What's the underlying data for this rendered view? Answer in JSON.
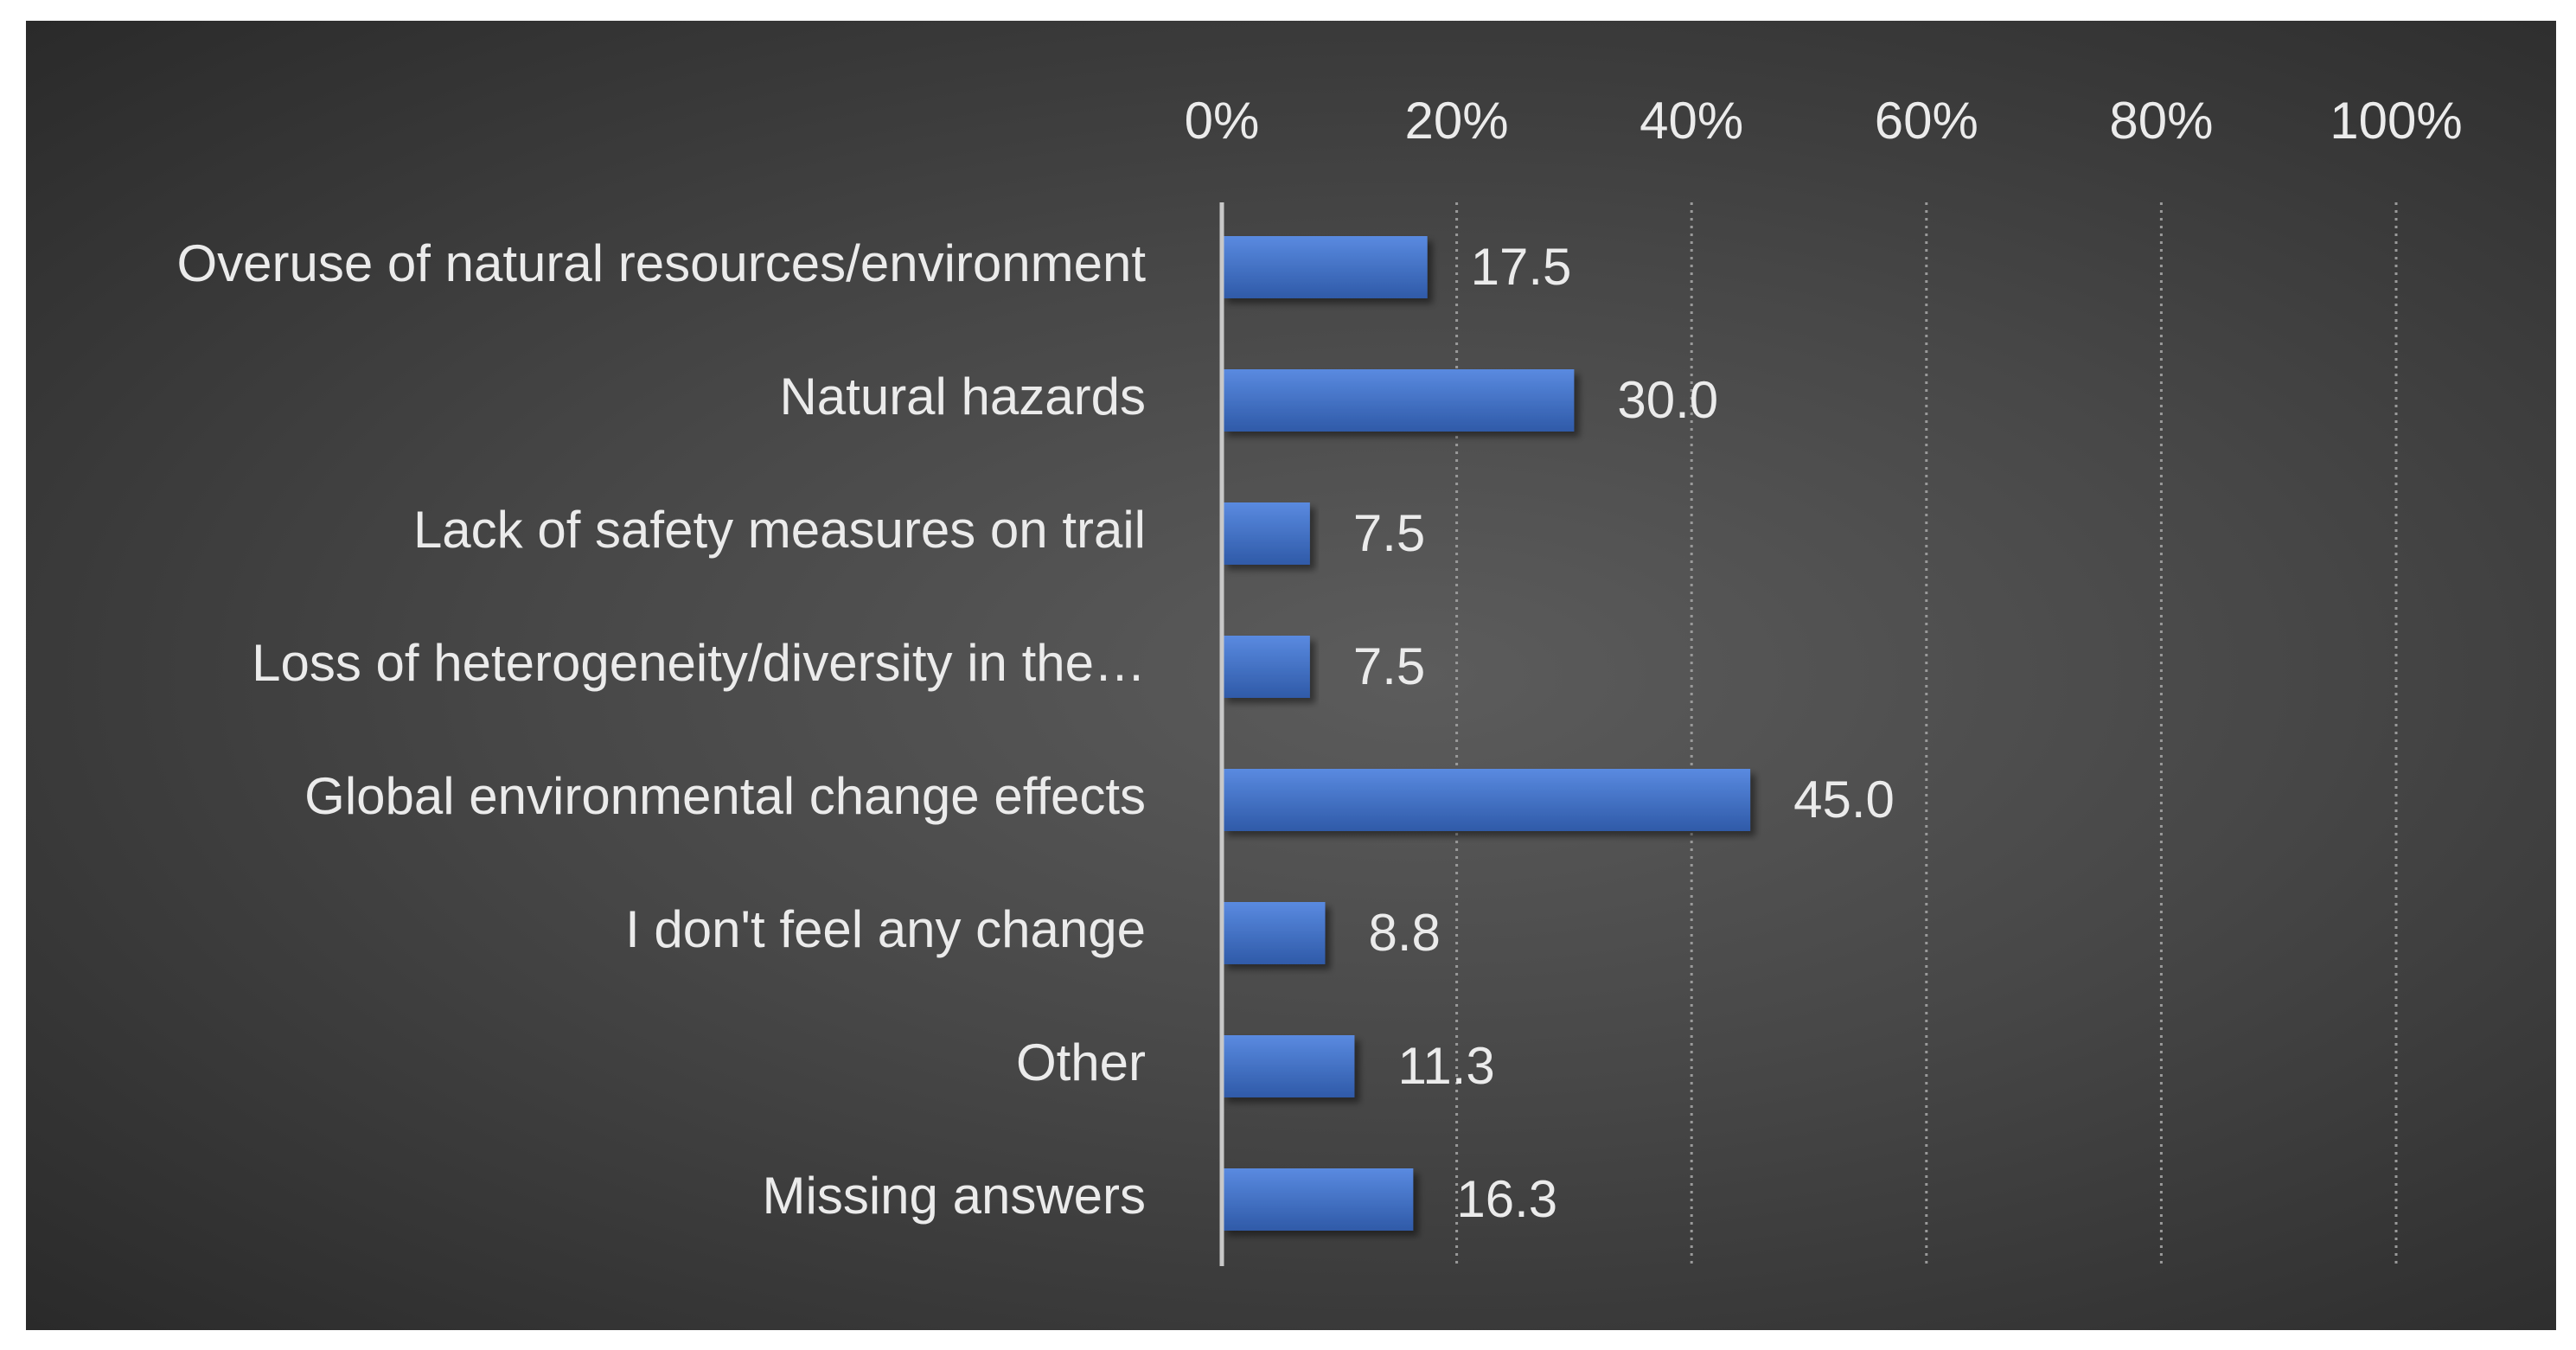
{
  "chart_data": {
    "type": "bar",
    "orientation": "horizontal",
    "title": "",
    "xlabel": "",
    "ylabel": "",
    "xlim": [
      0,
      100
    ],
    "tick_values": [
      0,
      20,
      40,
      60,
      80,
      100
    ],
    "tick_labels": [
      "0%",
      "20%",
      "40%",
      "60%",
      "80%",
      "100%"
    ],
    "x_axis_position": "top",
    "grid": "vertical dotted",
    "categories": [
      "Overuse of natural resources/environment",
      "Natural hazards",
      "Lack of safety measures on trail",
      "Loss of heterogeneity/diversity in the…",
      "Global environmental change effects",
      "I don't feel any change",
      "Other",
      "Missing answers"
    ],
    "values": [
      17.5,
      30.0,
      7.5,
      7.5,
      45.0,
      8.8,
      11.3,
      16.3
    ],
    "value_labels": [
      "17.5",
      "30.0",
      "7.5",
      "7.5",
      "45.0",
      "8.8",
      "11.3",
      "16.3"
    ],
    "bar_color": "#4472c4",
    "background_color": "#474747",
    "text_color": "#ebebeb"
  }
}
